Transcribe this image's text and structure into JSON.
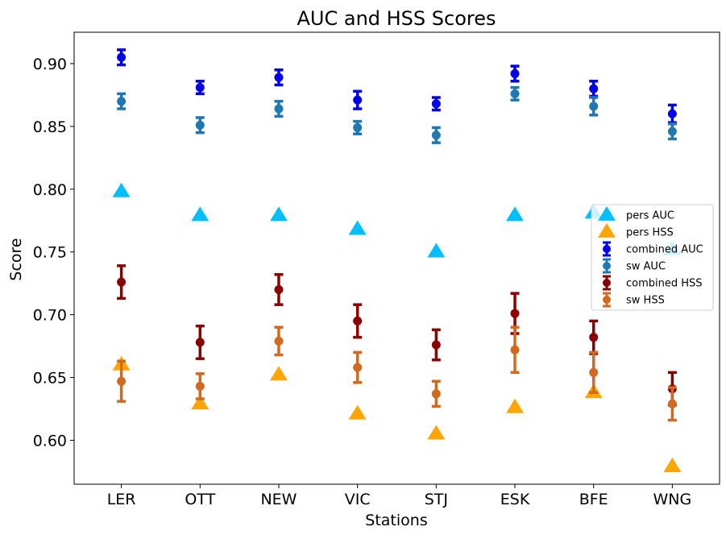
{
  "chart_data": {
    "type": "scatter",
    "title": "AUC and HSS Scores",
    "xlabel": "Stations",
    "ylabel": "Score",
    "categories": [
      "LER",
      "OTT",
      "NEW",
      "VIC",
      "STJ",
      "ESK",
      "BFE",
      "WNG"
    ],
    "ylim": [
      0.565,
      0.925
    ],
    "yticks": [
      "0.60",
      "0.65",
      "0.70",
      "0.75",
      "0.80",
      "0.85",
      "0.90"
    ],
    "grid": false,
    "legend_position": "center-right",
    "series": [
      {
        "name": "pers AUC",
        "marker": "triangle",
        "color": "#00bfff",
        "values": [
          0.798,
          0.779,
          0.779,
          0.768,
          0.75,
          0.779,
          0.781,
          0.752
        ]
      },
      {
        "name": "pers HSS",
        "marker": "triangle",
        "color": "#ffa500",
        "values": [
          0.66,
          0.629,
          0.652,
          0.621,
          0.605,
          0.626,
          0.638,
          0.579
        ]
      },
      {
        "name": "combined AUC",
        "marker": "circle",
        "color": "#0000ee",
        "values": [
          0.905,
          0.881,
          0.889,
          0.871,
          0.868,
          0.892,
          0.88,
          0.86
        ],
        "errors": [
          0.006,
          0.005,
          0.006,
          0.007,
          0.005,
          0.006,
          0.006,
          0.007
        ]
      },
      {
        "name": "sw AUC",
        "marker": "circle",
        "color": "#1f77b4",
        "values": [
          0.87,
          0.851,
          0.864,
          0.849,
          0.843,
          0.876,
          0.866,
          0.846
        ],
        "errors": [
          0.006,
          0.006,
          0.006,
          0.005,
          0.006,
          0.005,
          0.007,
          0.006
        ]
      },
      {
        "name": "combined HSS",
        "marker": "circle",
        "color": "#8b0000",
        "values": [
          0.726,
          0.678,
          0.72,
          0.695,
          0.676,
          0.701,
          0.682,
          0.641
        ],
        "errors": [
          0.013,
          0.013,
          0.012,
          0.013,
          0.012,
          0.016,
          0.013,
          0.013
        ]
      },
      {
        "name": "sw HSS",
        "marker": "circle",
        "color": "#d2691e",
        "values": [
          0.647,
          0.643,
          0.679,
          0.658,
          0.637,
          0.672,
          0.654,
          0.629
        ],
        "errors": [
          0.016,
          0.01,
          0.011,
          0.012,
          0.01,
          0.018,
          0.016,
          0.013
        ]
      }
    ]
  }
}
